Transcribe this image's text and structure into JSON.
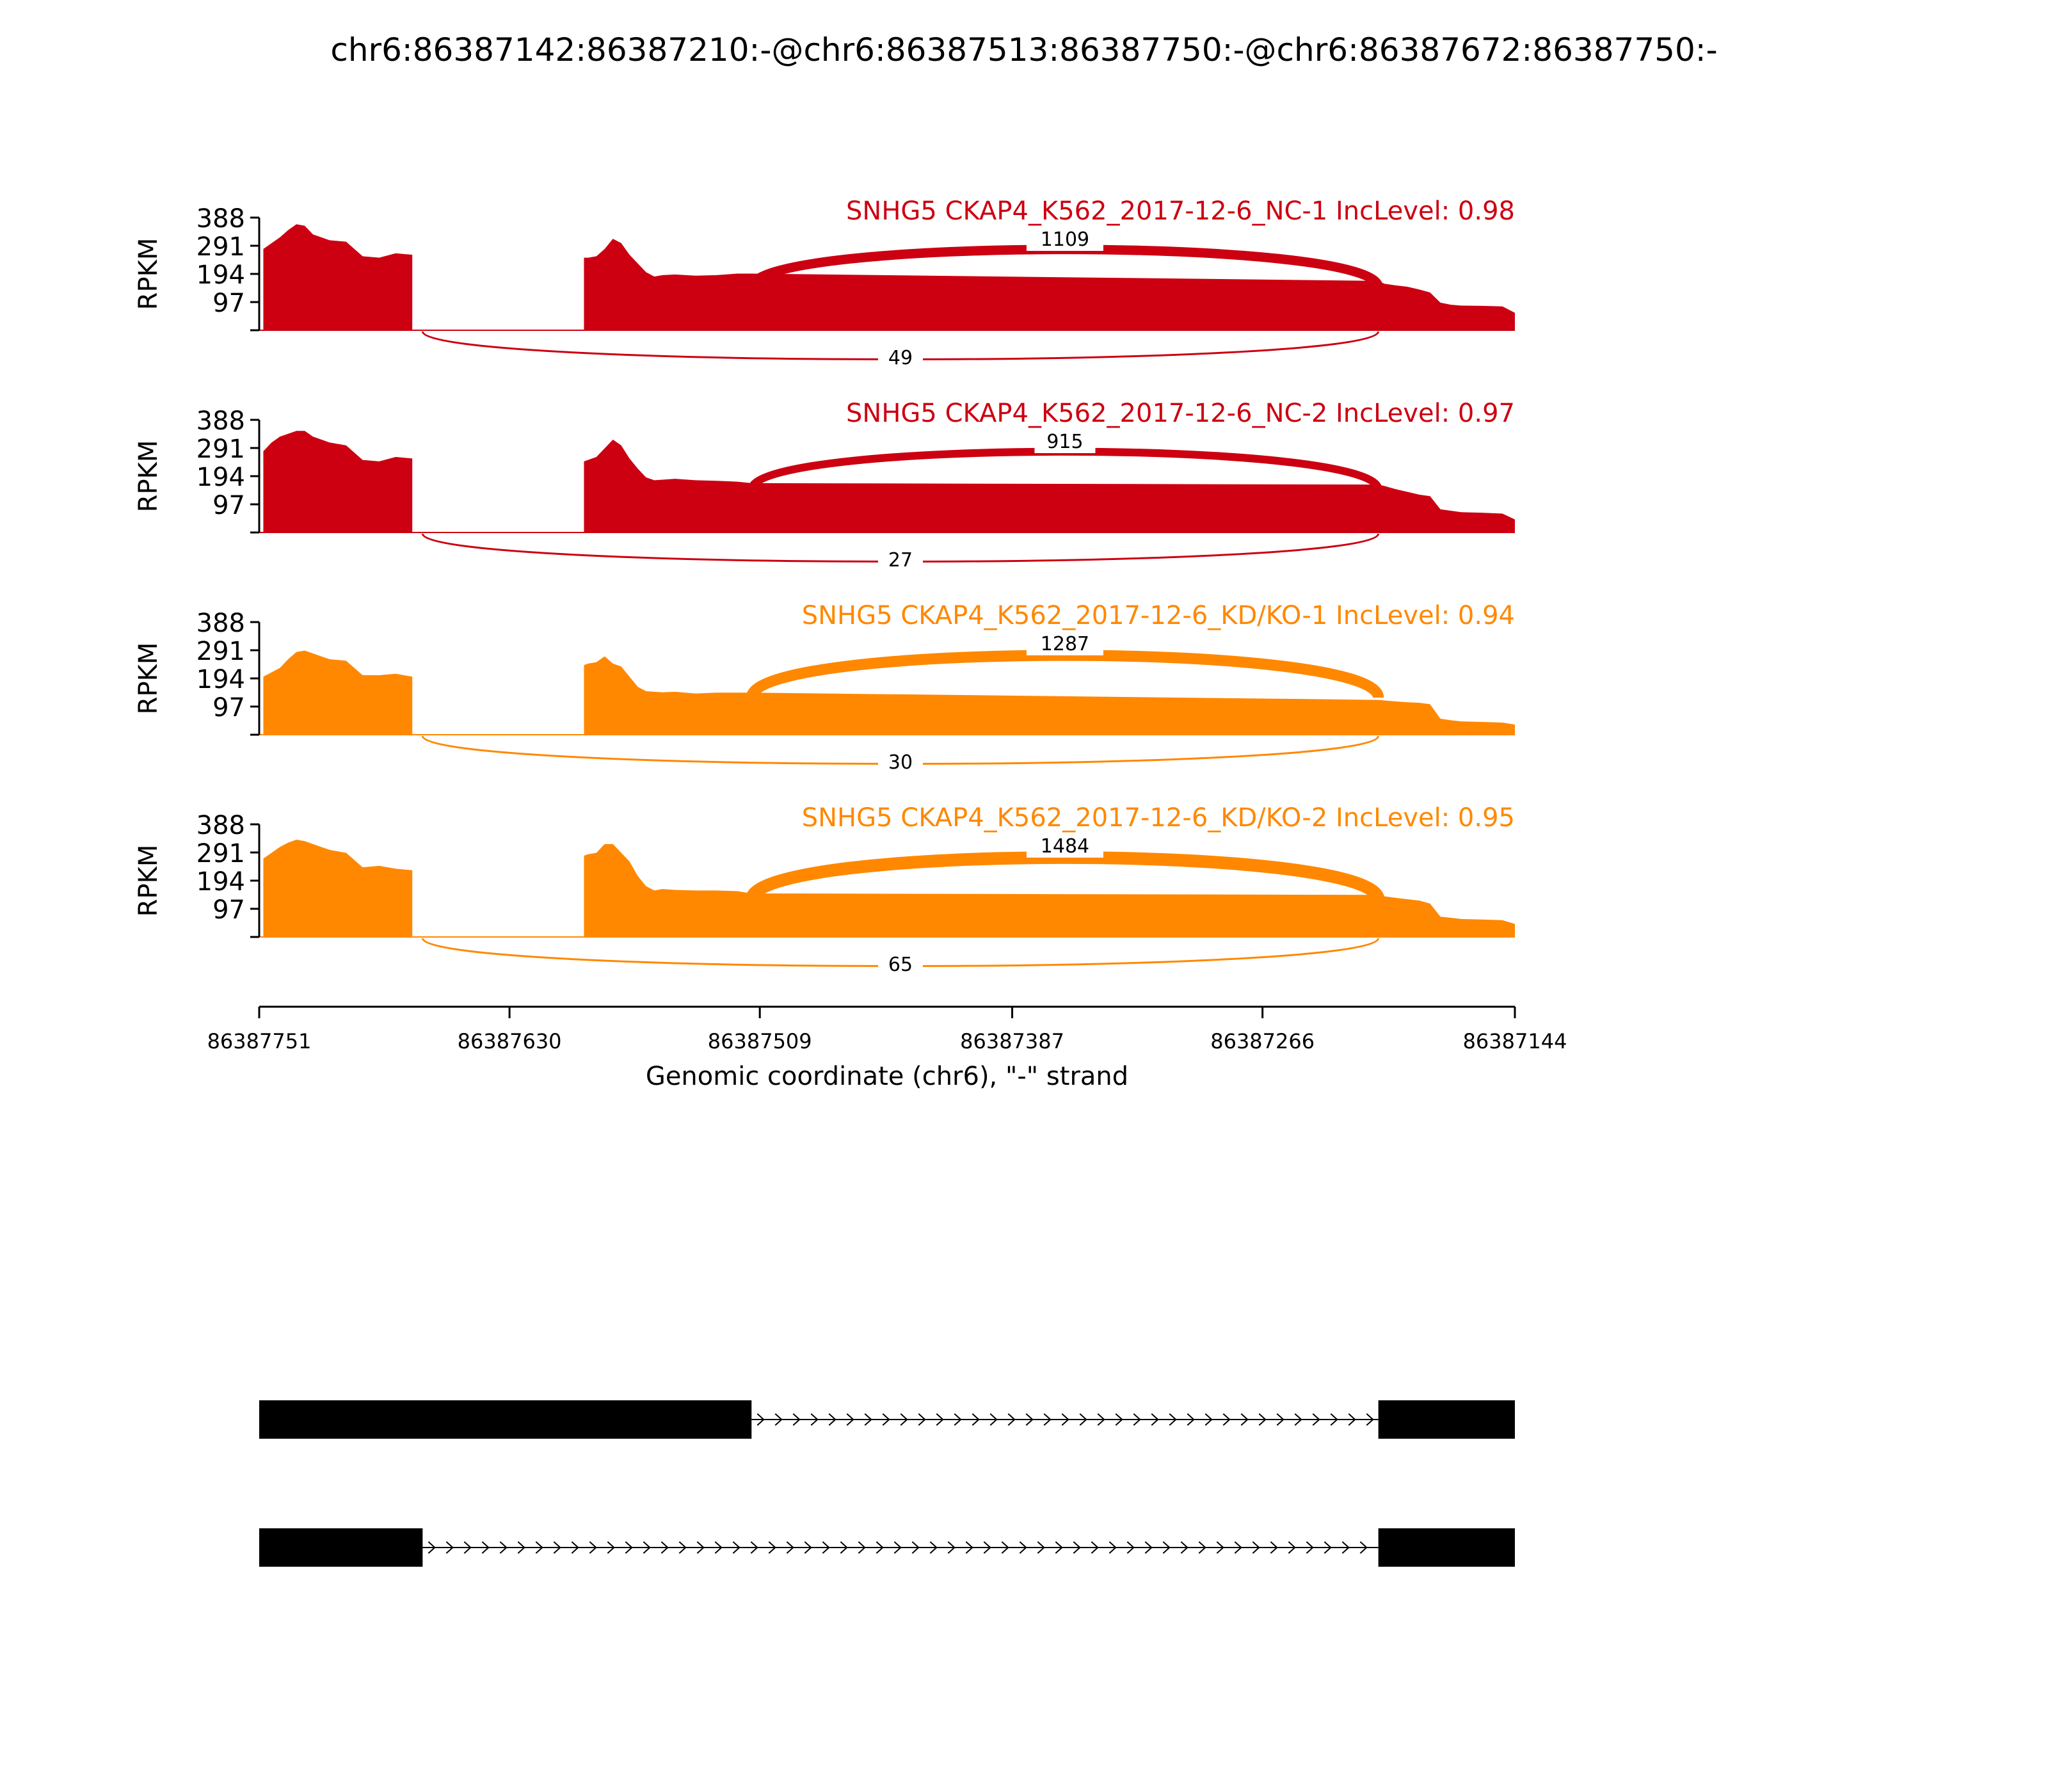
{
  "title": "chr6:86387142:86387210:-@chr6:86387513:86387750:-@chr6:86387672:86387750:-",
  "chart_data": {
    "type": "area",
    "xlabel": "Genomic coordinate (chr6), \"-\" strand",
    "ylabel": "RPKM",
    "x_reversed": true,
    "xlim": [
      86387751,
      86387144
    ],
    "x_ticks": [
      "86387751",
      "86387630",
      "86387509",
      "86387387",
      "86387266",
      "86387144"
    ],
    "ylim": [
      0,
      388
    ],
    "y_ticks": [
      "388",
      "291",
      "194",
      "97"
    ],
    "colors": {
      "NC": "#CC0011",
      "KD": "#FF8800",
      "gene": "#000000"
    },
    "exons": [
      {
        "name": "exon_upstream",
        "start": 86387751,
        "end": 86387672
      },
      {
        "name": "exon_middle",
        "start": 86387672,
        "end": 86387513
      },
      {
        "name": "exon_downstream",
        "start": 86387210,
        "end": 86387144
      }
    ],
    "coverage_x": [
      86387749,
      86387745,
      86387741,
      86387737,
      86387733,
      86387729,
      86387725,
      86387717,
      86387709,
      86387701,
      86387693,
      86387685,
      86387677,
      86387673,
      86387672,
      86387594,
      86387592,
      86387588,
      86387584,
      86387580,
      86387576,
      86387572,
      86387568,
      86387564,
      86387560,
      86387556,
      86387550,
      86387540,
      86387530,
      86387520,
      86387513,
      86387210,
      86387207,
      86387202,
      86387196,
      86387190,
      86387185,
      86387180,
      86387175,
      86387170,
      86387160,
      86387150,
      86387144
    ],
    "series": [
      {
        "name": "SNHG5 CKAP4_K562_2017-12-6_NC-1 IncLevel: 0.98",
        "group": "NC",
        "values": [
          280,
          300,
          320,
          345,
          365,
          360,
          330,
          310,
          305,
          255,
          250,
          265,
          260,
          0,
          0,
          250,
          250,
          255,
          280,
          315,
          300,
          260,
          230,
          200,
          185,
          190,
          192,
          188,
          190,
          195,
          195,
          170,
          160,
          155,
          150,
          140,
          130,
          95,
          88,
          85,
          84,
          82,
          60
        ],
        "junctions": [
          {
            "label": "1109",
            "from": 86387513,
            "to": 86387210,
            "count": 1109,
            "side": "top"
          },
          {
            "label": "49",
            "from": 86387672,
            "to": 86387210,
            "count": 49,
            "side": "bottom"
          }
        ]
      },
      {
        "name": "SNHG5 CKAP4_K562_2017-12-6_NC-2 IncLevel: 0.97",
        "group": "NC",
        "values": [
          280,
          310,
          330,
          340,
          350,
          350,
          330,
          310,
          300,
          250,
          245,
          260,
          255,
          0,
          0,
          245,
          250,
          260,
          290,
          320,
          300,
          255,
          220,
          190,
          180,
          182,
          185,
          180,
          178,
          175,
          170,
          165,
          160,
          150,
          140,
          130,
          125,
          80,
          75,
          70,
          68,
          65,
          45
        ],
        "junctions": [
          {
            "label": "915",
            "from": 86387513,
            "to": 86387210,
            "count": 915,
            "side": "top"
          },
          {
            "label": "27",
            "from": 86387672,
            "to": 86387210,
            "count": 27,
            "side": "bottom"
          }
        ]
      },
      {
        "name": "SNHG5 CKAP4_K562_2017-12-6_KD/KO-1 IncLevel: 0.94",
        "group": "KD",
        "values": [
          200,
          215,
          230,
          260,
          285,
          290,
          280,
          260,
          255,
          205,
          205,
          210,
          200,
          0,
          0,
          240,
          245,
          250,
          270,
          245,
          235,
          200,
          165,
          150,
          148,
          146,
          148,
          142,
          145,
          145,
          145,
          120,
          118,
          115,
          112,
          110,
          105,
          55,
          50,
          46,
          44,
          42,
          35
        ],
        "junctions": [
          {
            "label": "1287",
            "from": 86387513,
            "to": 86387210,
            "count": 1287,
            "side": "top"
          },
          {
            "label": "30",
            "from": 86387672,
            "to": 86387210,
            "count": 30,
            "side": "bottom"
          }
        ]
      },
      {
        "name": "SNHG5 CKAP4_K562_2017-12-6_KD/KO-2 IncLevel: 0.95",
        "group": "KD",
        "values": [
          270,
          290,
          310,
          325,
          335,
          330,
          320,
          300,
          290,
          240,
          245,
          235,
          230,
          0,
          0,
          280,
          285,
          290,
          320,
          320,
          290,
          260,
          210,
          175,
          160,
          165,
          162,
          160,
          160,
          158,
          150,
          145,
          140,
          135,
          130,
          125,
          115,
          70,
          66,
          62,
          60,
          58,
          45
        ],
        "junctions": [
          {
            "label": "1484",
            "from": 86387513,
            "to": 86387210,
            "count": 1484,
            "side": "top"
          },
          {
            "label": "65",
            "from": 86387672,
            "to": 86387210,
            "count": 65,
            "side": "bottom"
          }
        ]
      }
    ],
    "isoforms": [
      {
        "name": "inclusion",
        "exons": [
          [
            86387751,
            86387513
          ],
          [
            86387210,
            86387144
          ]
        ]
      },
      {
        "name": "exclusion",
        "exons": [
          [
            86387751,
            86387672
          ],
          [
            86387210,
            86387144
          ]
        ]
      }
    ]
  }
}
